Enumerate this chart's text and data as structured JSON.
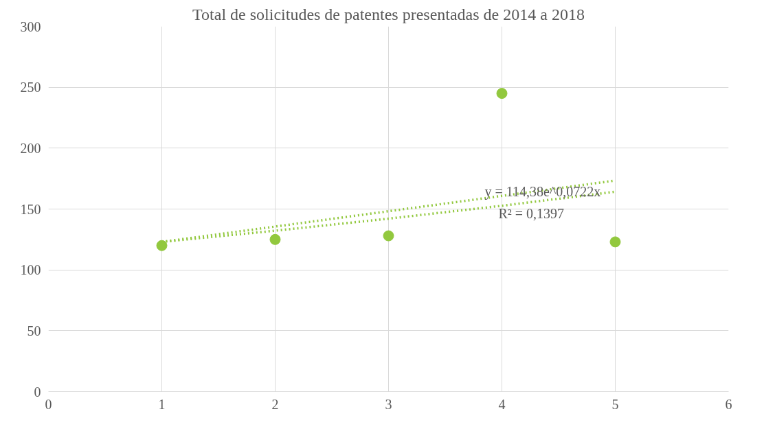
{
  "chart_data": {
    "type": "scatter",
    "title": "Total de solicitudes de patentes presentadas de 2014 a 2018",
    "x": [
      1,
      2,
      3,
      4,
      5
    ],
    "series": [
      {
        "color": "#92c83e",
        "marker": "circle",
        "values": [
          120,
          125,
          128,
          245,
          123
        ]
      },
      {
        "type": "line",
        "color": "#92c83e",
        "marker": "none",
        "line_style": "dotted",
        "x": [
          1,
          2,
          3,
          4,
          5
        ],
        "values": [
          123,
          135.6,
          148.2,
          160.8,
          173.4
        ]
      },
      {
        "type": "line",
        "color": "#92c83e",
        "marker": "none",
        "line_style": "dotted",
        "x": [
          1,
          2,
          3,
          4,
          5
        ],
        "values": [
          123,
          132.2,
          142.1,
          152.7,
          164.2
        ]
      }
    ],
    "annotations": [
      "y = 114,38e^0,0722x",
      "R² = 0,1397"
    ],
    "xlim": [
      0,
      6
    ],
    "xticks": [
      0,
      1,
      2,
      3,
      4,
      5,
      6
    ],
    "ylim": [
      0,
      300
    ],
    "yticks": [
      0,
      50,
      100,
      150,
      200,
      250,
      300
    ],
    "grid": true
  }
}
